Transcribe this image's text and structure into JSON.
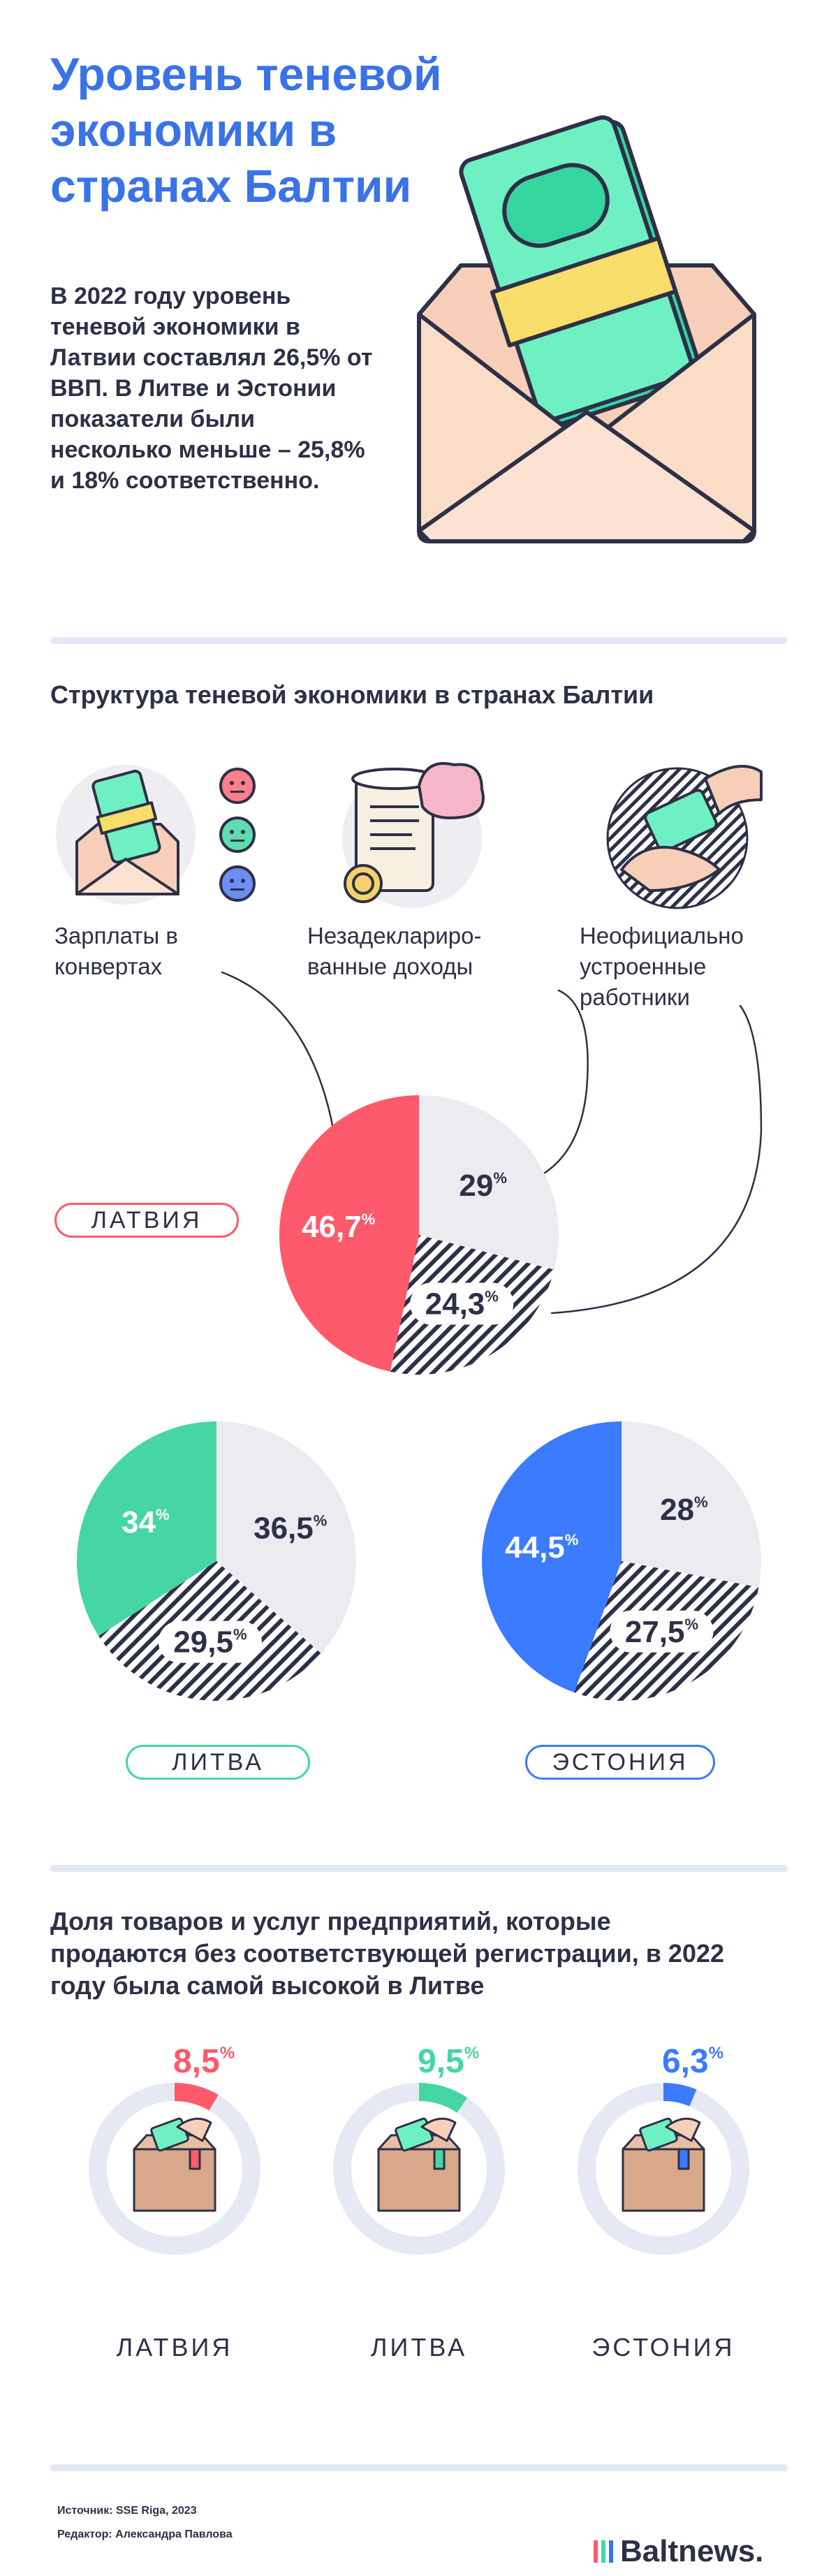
{
  "header": {
    "title": "Уровень теневой экономики в странах Балтии",
    "intro": "В 2022 году уровень теневой экономики в Латвии составлял 26,5% от ВВП. В Литве и Эстонии показатели были несколько меньше – 25,8% и 18% соответственно."
  },
  "structure": {
    "title": "Структура теневой экономики в странах Балтии",
    "categories": [
      {
        "label": "Зарплаты в конвертах",
        "icon": "envelope-money-emoji-icon"
      },
      {
        "label": "Незадеклариро­ванные доходы",
        "icon": "scroll-brain-icon"
      },
      {
        "label": "Неофициально устроенные работники",
        "icon": "hand-money-icon"
      }
    ]
  },
  "chart_data": [
    {
      "type": "pie",
      "title": "ЛАТВИЯ",
      "categories": [
        "Зарплаты в конвертах",
        "Незадекларированные доходы",
        "Неофициально устроенные работники"
      ],
      "values": [
        46.7,
        29,
        24.3
      ],
      "labels": [
        "46,7",
        "29",
        "24,3"
      ],
      "unit": "%",
      "colors": [
        "#ff5a6b",
        "#ebebf0",
        "hatch"
      ]
    },
    {
      "type": "pie",
      "title": "ЛИТВА",
      "categories": [
        "Зарплаты в конвертах",
        "Незадекларированные доходы",
        "Неофициально устроенные работники"
      ],
      "values": [
        34,
        36.5,
        29.5
      ],
      "labels": [
        "34",
        "36,5",
        "29,5"
      ],
      "unit": "%",
      "colors": [
        "#45d6a3",
        "#ebebf0",
        "hatch"
      ]
    },
    {
      "type": "pie",
      "title": "ЭСТОНИЯ",
      "categories": [
        "Зарплаты в конвертах",
        "Незадекларированные доходы",
        "Неофициально устроенные работники"
      ],
      "values": [
        44.5,
        28,
        27.5
      ],
      "labels": [
        "44,5",
        "28",
        "27,5"
      ],
      "unit": "%",
      "colors": [
        "#3a7bff",
        "#ebebf0",
        "hatch"
      ]
    },
    {
      "type": "pie",
      "title": "Доля товаров и услуг предприятий, которые продаются без соответствующей регистрации, в 2022 году была самой высокой в Литве",
      "categories": [
        "ЛАТВИЯ",
        "ЛИТВА",
        "ЭСТОНИЯ"
      ],
      "values": [
        8.5,
        9.5,
        6.3
      ],
      "labels": [
        "8,5",
        "9,5",
        "6,3"
      ],
      "unit": "%",
      "colors": [
        "#ff5a6b",
        "#45d6a3",
        "#3a7bff"
      ]
    }
  ],
  "unregistered": {
    "title": "Доля товаров и услуг предприятий, которые продаются без соответствующей регистрации, в 2022 году была самой высокой в Литве",
    "items": [
      {
        "country": "ЛАТВИЯ",
        "label": "8,5",
        "color": "#ff5a6b"
      },
      {
        "country": "ЛИТВА",
        "label": "9,5",
        "color": "#45d6a3"
      },
      {
        "country": "ЭСТОНИЯ",
        "label": "6,3",
        "color": "#3a7bff"
      }
    ]
  },
  "footer": {
    "source": "Источник: SSE Riga, 2023",
    "editor": "Редактор: Александра Павлова",
    "brand": "Baltnews."
  }
}
